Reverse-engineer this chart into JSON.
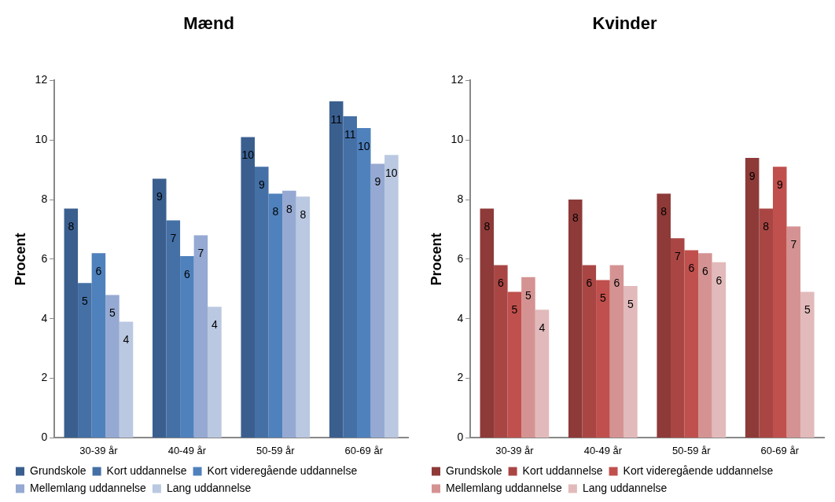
{
  "chart_data": [
    {
      "type": "bar",
      "title": "Mænd",
      "ylabel": "Procent",
      "categories": [
        "30-39 år",
        "40-49 år",
        "50-59 år",
        "60-69 år"
      ],
      "ylim": [
        0,
        12
      ],
      "yticks": [
        0,
        2,
        4,
        6,
        8,
        10,
        12
      ],
      "grid": false,
      "legend": "bottom",
      "series": [
        {
          "name": "Grundskole",
          "color": "#3a5f8f",
          "values": [
            7.7,
            8.7,
            10.1,
            11.3
          ],
          "value_labels": [
            "8",
            "9",
            "10",
            "11"
          ]
        },
        {
          "name": "Kort uddannelse",
          "color": "#4470a6",
          "values": [
            5.2,
            7.3,
            9.1,
            10.8
          ],
          "value_labels": [
            "5",
            "7",
            "9",
            "11"
          ]
        },
        {
          "name": "Kort videregående uddannelse",
          "color": "#4f81bd",
          "values": [
            6.2,
            6.1,
            8.2,
            10.4
          ],
          "value_labels": [
            "6",
            "6",
            "8",
            "10"
          ]
        },
        {
          "name": "Mellemlang uddannelse",
          "color": "#95a9d2",
          "values": [
            4.8,
            6.8,
            8.3,
            9.2
          ],
          "value_labels": [
            "5",
            "7",
            "8",
            "9"
          ]
        },
        {
          "name": "Lang uddannelse",
          "color": "#bac8e1",
          "values": [
            3.9,
            4.4,
            8.1,
            9.5
          ],
          "value_labels": [
            "4",
            "4",
            "8",
            "10"
          ]
        }
      ]
    },
    {
      "type": "bar",
      "title": "Kvinder",
      "ylabel": "Procent",
      "categories": [
        "30-39 år",
        "40-49 år",
        "50-59 år",
        "60-69 år"
      ],
      "ylim": [
        0,
        12
      ],
      "yticks": [
        0,
        2,
        4,
        6,
        8,
        10,
        12
      ],
      "grid": false,
      "legend": "bottom",
      "series": [
        {
          "name": "Grundskole",
          "color": "#8e3a38",
          "values": [
            7.7,
            8.0,
            8.2,
            9.4
          ],
          "value_labels": [
            "8",
            "8",
            "8",
            "9"
          ]
        },
        {
          "name": "Kort uddannelse",
          "color": "#a94644",
          "values": [
            5.8,
            5.8,
            6.7,
            7.7
          ],
          "value_labels": [
            "6",
            "6",
            "7",
            "8"
          ]
        },
        {
          "name": "Kort videregående uddannelse",
          "color": "#c0504d",
          "values": [
            4.9,
            5.3,
            6.3,
            9.1
          ],
          "value_labels": [
            "5",
            "5",
            "6",
            "9"
          ]
        },
        {
          "name": "Mellemlang uddannelse",
          "color": "#d49392",
          "values": [
            5.4,
            5.8,
            6.2,
            7.1
          ],
          "value_labels": [
            "5",
            "6",
            "6",
            "7"
          ]
        },
        {
          "name": "Lang uddannelse",
          "color": "#e2babb",
          "values": [
            4.3,
            5.1,
            5.9,
            4.9
          ],
          "value_labels": [
            "4",
            "5",
            "6",
            "5"
          ]
        }
      ]
    }
  ]
}
